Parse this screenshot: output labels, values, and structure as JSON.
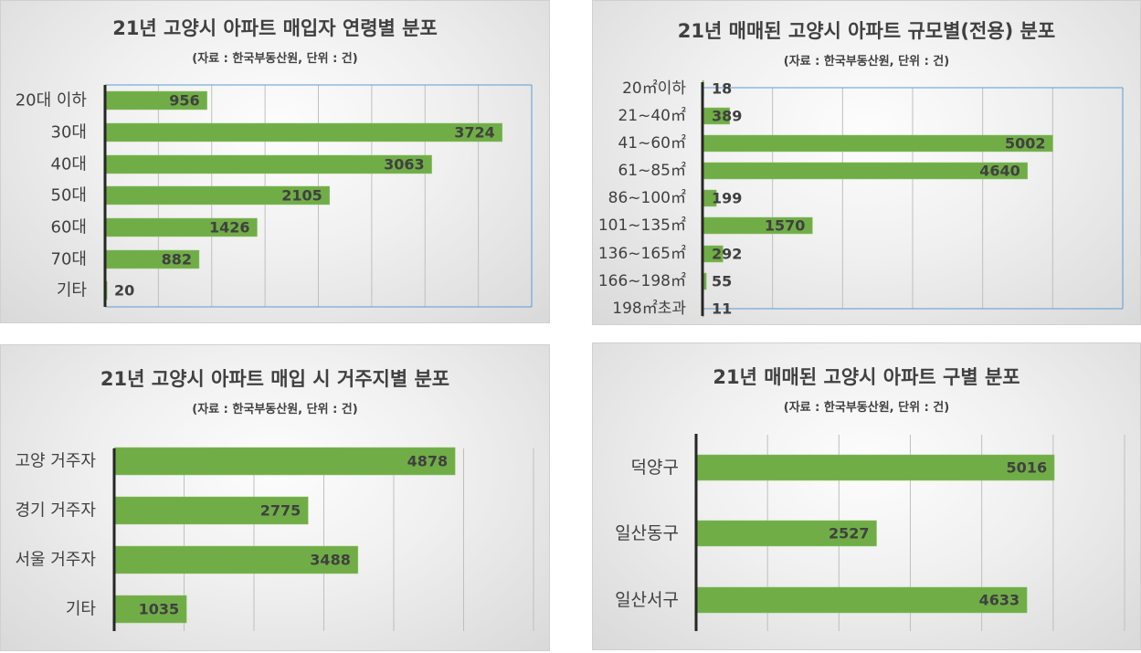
{
  "chart_data": [
    {
      "type": "bar",
      "orientation": "horizontal",
      "title": "21년 고양시 아파트 매입자  연령별 분포",
      "subtitle": "(자료 : 한국부동산원, 단위 : 건)",
      "categories": [
        "20대 이하",
        "30대",
        "40대",
        "50대",
        "60대",
        "70대",
        "기타"
      ],
      "values": [
        956,
        3724,
        3063,
        2105,
        1426,
        882,
        20
      ],
      "xlim": [
        0,
        4000
      ],
      "grid": true,
      "bar_color": "#70ad47"
    },
    {
      "type": "bar",
      "orientation": "horizontal",
      "title": "21년 매매된 고양시 아파트 규모별(전용) 분포",
      "subtitle": "(자료 : 한국부동산원, 단위 : 건)",
      "categories": [
        "20㎡이하",
        "21~40㎡",
        "41~60㎡",
        "61~85㎡",
        "86~100㎡",
        "101~135㎡",
        "136~165㎡",
        "166~198㎡",
        "198㎡초과"
      ],
      "values": [
        18,
        389,
        5002,
        4640,
        199,
        1570,
        292,
        55,
        11
      ],
      "xlim": [
        0,
        6000
      ],
      "grid": true,
      "bar_color": "#70ad47"
    },
    {
      "type": "bar",
      "orientation": "horizontal",
      "title": "21년 고양시 아파트 매입 시 거주지별 분포",
      "subtitle": "(자료 : 한국부동산원, 단위 : 건)",
      "categories": [
        "고양 거주자",
        "경기 거주자",
        "서울 거주자",
        "기타"
      ],
      "values": [
        4878,
        2775,
        3488,
        1035
      ],
      "xlim": [
        0,
        6000
      ],
      "grid": true,
      "bar_color": "#70ad47"
    },
    {
      "type": "bar",
      "orientation": "horizontal",
      "title": "21년 매매된 고양시 아파트 구별 분포",
      "subtitle": "(자료 : 한국부동산원, 단위 : 건)",
      "categories": [
        "덕양구",
        "일산동구",
        "일산서구"
      ],
      "values": [
        5016,
        2527,
        4633
      ],
      "xlim": [
        0,
        6000
      ],
      "grid": true,
      "bar_color": "#70ad47"
    }
  ]
}
